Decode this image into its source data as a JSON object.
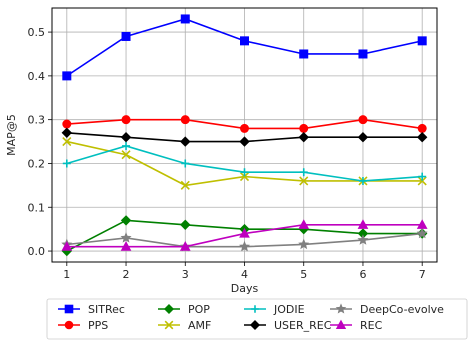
{
  "chart_data": {
    "type": "line",
    "title": "",
    "xlabel": "Days",
    "ylabel": "MAP@5",
    "x": [
      1,
      2,
      3,
      4,
      5,
      6,
      7
    ],
    "xlim": [
      0.75,
      7.25
    ],
    "ylim": [
      -0.025,
      0.555
    ],
    "xticks": [
      "1",
      "2",
      "3",
      "4",
      "5",
      "6",
      "7"
    ],
    "yticks": [
      "0.0",
      "0.1",
      "0.2",
      "0.3",
      "0.4",
      "0.5"
    ],
    "grid": true,
    "legend_position": "below",
    "series": [
      {
        "name": "SITRec",
        "color": "#0000ff",
        "marker": "square",
        "values": [
          0.4,
          0.49,
          0.53,
          0.48,
          0.45,
          0.45,
          0.48
        ]
      },
      {
        "name": "PPS",
        "color": "#ff0000",
        "marker": "circle",
        "values": [
          0.29,
          0.3,
          0.3,
          0.28,
          0.28,
          0.3,
          0.28
        ]
      },
      {
        "name": "POP",
        "color": "#008000",
        "marker": "diamond",
        "values": [
          0.0,
          0.07,
          0.06,
          0.05,
          0.05,
          0.04,
          0.04
        ]
      },
      {
        "name": "AMF",
        "color": "#bfbf00",
        "marker": "x",
        "values": [
          0.25,
          0.22,
          0.15,
          0.17,
          0.16,
          0.16,
          0.16
        ]
      },
      {
        "name": "JODIE",
        "color": "#00bfbf",
        "marker": "plus",
        "values": [
          0.2,
          0.24,
          0.2,
          0.18,
          0.18,
          0.16,
          0.17
        ]
      },
      {
        "name": "USER_REC",
        "color": "#000000",
        "marker": "diamond",
        "values": [
          0.27,
          0.26,
          0.25,
          0.25,
          0.26,
          0.26,
          0.26
        ]
      },
      {
        "name": "DeepCo-evolve",
        "color": "#808080",
        "marker": "star",
        "values": [
          0.015,
          0.03,
          0.01,
          0.01,
          0.015,
          0.025,
          0.04
        ]
      },
      {
        "name": "REC",
        "color": "#bf00bf",
        "marker": "triangle",
        "values": [
          0.01,
          0.01,
          0.01,
          0.04,
          0.06,
          0.06,
          0.06
        ]
      }
    ]
  }
}
